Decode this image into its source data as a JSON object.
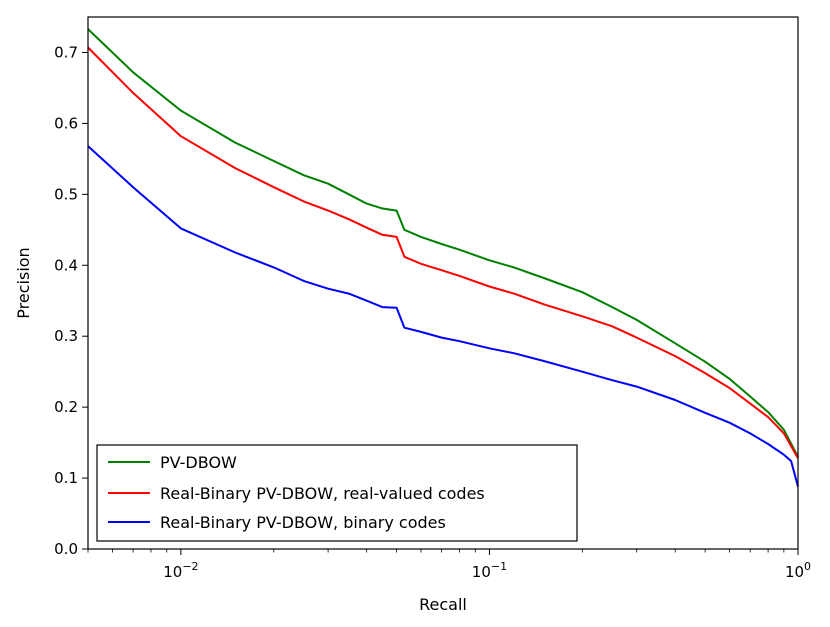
{
  "chart_data": {
    "type": "line",
    "xscale": "log",
    "xlabel": "Recall",
    "ylabel": "Precision",
    "xlim": [
      0.005,
      1
    ],
    "ylim": [
      0.0,
      0.75
    ],
    "grid": false,
    "legend_position": "bottom-left",
    "x_ticks": [
      {
        "value": 0.01,
        "base": "10",
        "exp": "−2"
      },
      {
        "value": 0.1,
        "base": "10",
        "exp": "−1"
      },
      {
        "value": 1,
        "base": "10",
        "exp": "0"
      }
    ],
    "y_ticks": [
      "0.0",
      "0.1",
      "0.2",
      "0.3",
      "0.4",
      "0.5",
      "0.6",
      "0.7"
    ],
    "series": [
      {
        "name": "PV-DBOW",
        "color": "#008000",
        "x": [
          0.005,
          0.007,
          0.01,
          0.015,
          0.02,
          0.025,
          0.03,
          0.035,
          0.04,
          0.045,
          0.05,
          0.053,
          0.06,
          0.07,
          0.08,
          0.1,
          0.12,
          0.15,
          0.2,
          0.25,
          0.3,
          0.4,
          0.5,
          0.6,
          0.7,
          0.8,
          0.9,
          1.0
        ],
        "y": [
          0.733,
          0.672,
          0.618,
          0.573,
          0.547,
          0.527,
          0.515,
          0.5,
          0.487,
          0.48,
          0.477,
          0.45,
          0.44,
          0.43,
          0.422,
          0.407,
          0.397,
          0.382,
          0.362,
          0.341,
          0.323,
          0.29,
          0.264,
          0.24,
          0.215,
          0.193,
          0.168,
          0.13
        ]
      },
      {
        "name": "Real-Binary PV-DBOW, real-valued codes",
        "color": "#ff0000",
        "x": [
          0.005,
          0.007,
          0.01,
          0.015,
          0.02,
          0.025,
          0.03,
          0.035,
          0.04,
          0.045,
          0.05,
          0.053,
          0.06,
          0.07,
          0.08,
          0.1,
          0.12,
          0.15,
          0.2,
          0.25,
          0.3,
          0.4,
          0.5,
          0.6,
          0.7,
          0.8,
          0.9,
          1.0
        ],
        "y": [
          0.707,
          0.643,
          0.582,
          0.537,
          0.51,
          0.49,
          0.477,
          0.465,
          0.453,
          0.443,
          0.44,
          0.412,
          0.402,
          0.393,
          0.385,
          0.37,
          0.36,
          0.345,
          0.328,
          0.314,
          0.298,
          0.272,
          0.248,
          0.227,
          0.205,
          0.186,
          0.163,
          0.128
        ]
      },
      {
        "name": "Real-Binary PV-DBOW, binary codes",
        "color": "#0000ff",
        "x": [
          0.005,
          0.007,
          0.01,
          0.015,
          0.02,
          0.025,
          0.03,
          0.035,
          0.04,
          0.045,
          0.05,
          0.053,
          0.06,
          0.07,
          0.08,
          0.1,
          0.12,
          0.15,
          0.2,
          0.25,
          0.3,
          0.4,
          0.5,
          0.6,
          0.7,
          0.8,
          0.9,
          0.95,
          1.0
        ],
        "y": [
          0.568,
          0.51,
          0.452,
          0.418,
          0.397,
          0.378,
          0.367,
          0.36,
          0.35,
          0.341,
          0.34,
          0.312,
          0.306,
          0.298,
          0.293,
          0.283,
          0.276,
          0.265,
          0.25,
          0.238,
          0.229,
          0.21,
          0.192,
          0.178,
          0.163,
          0.148,
          0.133,
          0.124,
          0.088
        ]
      }
    ]
  }
}
